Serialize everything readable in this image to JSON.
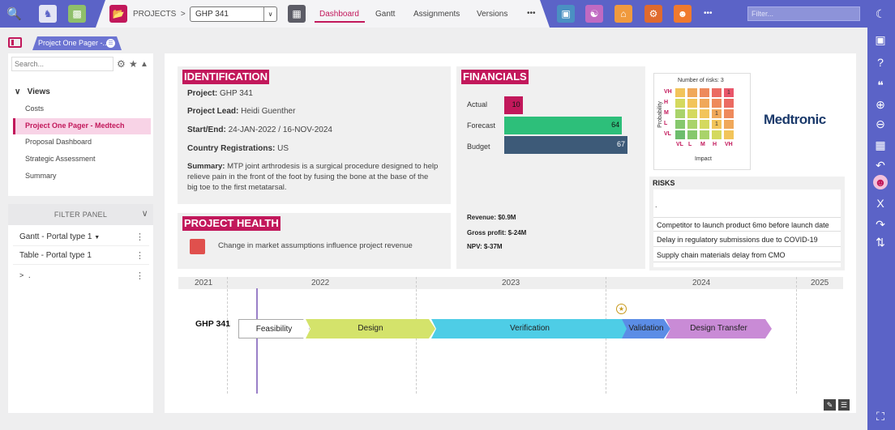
{
  "header": {
    "projects_label": "PROJECTS",
    "project_select": "GHP 341",
    "tabs": [
      "Dashboard",
      "Gantt",
      "Assignments",
      "Versions"
    ],
    "more": "•••",
    "more_right": "•••",
    "filter_placeholder": "Filter..."
  },
  "sidebar": {
    "page_tab": "Project One Pager -...",
    "search_placeholder": "Search...",
    "views_label": "Views",
    "views": [
      "Costs",
      "Project One Pager - Medtech",
      "Proposal Dashboard",
      "Strategic Assessment",
      "Summary"
    ],
    "filter_panel_label": "FILTER PANEL",
    "filters": [
      "Gantt - Portal type 1",
      "Table - Portal type 1",
      "."
    ]
  },
  "identification": {
    "title": "IDENTIFICATION",
    "project_label": "Project:",
    "project": "GHP 341",
    "lead_label": "Project Lead:",
    "lead": "Heidi Guenther",
    "dates_label": "Start/End:",
    "dates": "24-JAN-2022 / 16-NOV-2024",
    "country_label": "Country Registrations:",
    "country": "US",
    "summary_label": "Summary:",
    "summary": "MTP joint arthrodesis is a surgical procedure designed to help relieve pain in the front of the foot by fusing the bone at the base of the big toe to the first metatarsal."
  },
  "health": {
    "title": "PROJECT HEALTH",
    "item": "Change in market assumptions influence project revenue"
  },
  "financials": {
    "title": "FINANCIALS",
    "bars": [
      {
        "label": "Actual",
        "value": 10,
        "color": "#c2185b"
      },
      {
        "label": "Forecast",
        "value": 64,
        "color": "#2dbf7a"
      },
      {
        "label": "Budget",
        "value": 67,
        "color": "#3d5a78"
      }
    ],
    "revenue": "Revenue: $0.9M",
    "gross_profit": "Gross profit: $-24M",
    "npv": "NPV: $-37M"
  },
  "matrix": {
    "title": "Number of risks: 3",
    "y_label": "Probability",
    "x_label": "Impact",
    "levels": [
      "VL",
      "L",
      "M",
      "H",
      "VH"
    ],
    "counts": [
      {
        "p": "VH",
        "i": "VH",
        "n": "1"
      },
      {
        "p": "M",
        "i": "H",
        "n": "1"
      },
      {
        "p": "L",
        "i": "H",
        "n": "1"
      }
    ]
  },
  "brand": "Medtronic",
  "risks": {
    "title": "RISKS",
    "placeholder": ".",
    "items": [
      "Competitor to launch product 6mo before launch date",
      "Delay in regulatory submissions due to COVID-19",
      "Supply chain materials delay from CMO"
    ]
  },
  "timeline": {
    "years": [
      "2021",
      "2022",
      "2023",
      "2024",
      "2025"
    ],
    "project": "GHP 341",
    "phases": [
      {
        "name": "Feasibility",
        "color": "#ffffff"
      },
      {
        "name": "Design",
        "color": "#d4e36b"
      },
      {
        "name": "Verification",
        "color": "#4ecde6"
      },
      {
        "name": "Validation",
        "color": "#5b8de6"
      },
      {
        "name": "Design Transfer",
        "color": "#c98bd6"
      }
    ]
  }
}
